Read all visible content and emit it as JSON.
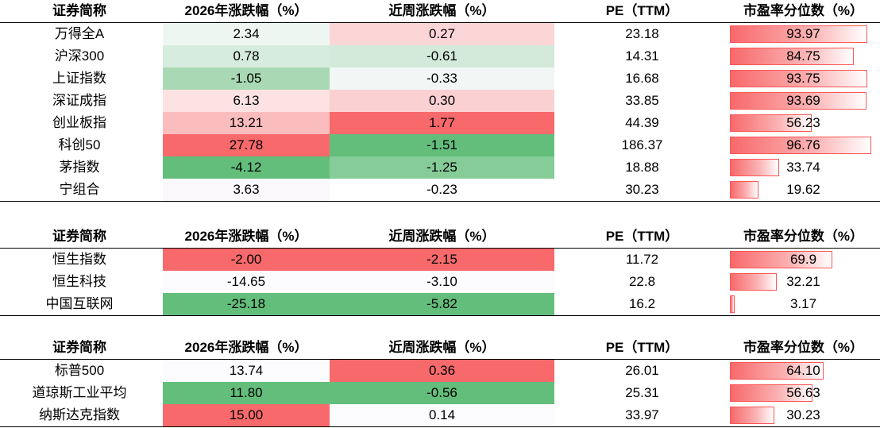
{
  "headers": [
    "证券简称",
    "2026年涨跌幅（%）",
    "近周涨跌幅（%）",
    "PE（TTM）",
    "市盈率分位数（%）"
  ],
  "sections": [
    {
      "rows": [
        {
          "name": "万得全A",
          "ytd": "2.34",
          "wk": "0.27",
          "pe": "23.18",
          "pct": "93.97",
          "pct_value": 93.97,
          "ytd_color": "#eef6f1",
          "wk_color": "#fcd5d7"
        },
        {
          "name": "沪深300",
          "ytd": "0.78",
          "wk": "-0.61",
          "pe": "14.31",
          "pct": "84.75",
          "pct_value": 84.75,
          "ytd_color": "#d6ecde",
          "wk_color": "#d3eadb"
        },
        {
          "name": "上证指数",
          "ytd": "-1.05",
          "wk": "-0.33",
          "pe": "16.68",
          "pct": "93.75",
          "pct_value": 93.75,
          "ytd_color": "#a9d9b4",
          "wk_color": "#f2f7f5"
        },
        {
          "name": "深证成指",
          "ytd": "6.13",
          "wk": "0.30",
          "pe": "33.85",
          "pct": "93.69",
          "pct_value": 93.69,
          "ytd_color": "#fde2e3",
          "wk_color": "#fbd0d2"
        },
        {
          "name": "创业板指",
          "ytd": "13.21",
          "wk": "1.77",
          "pe": "44.39",
          "pct": "56.23",
          "pct_value": 56.23,
          "ytd_color": "#fbbcbe",
          "wk_color": "#f8696b"
        },
        {
          "name": "科创50",
          "ytd": "27.78",
          "wk": "-1.51",
          "pe": "186.37",
          "pct": "96.76",
          "pct_value": 96.76,
          "ytd_color": "#f8696b",
          "wk_color": "#63be7b"
        },
        {
          "name": "茅指数",
          "ytd": "-4.12",
          "wk": "-1.25",
          "pe": "18.88",
          "pct": "33.74",
          "pct_value": 33.74,
          "ytd_color": "#63be7b",
          "wk_color": "#85cc98"
        },
        {
          "name": "宁组合",
          "ytd": "3.63",
          "wk": "-0.23",
          "pe": "30.23",
          "pct": "19.62",
          "pct_value": 19.62,
          "ytd_color": "#fbf8fc",
          "wk_color": "#ffffff"
        }
      ]
    },
    {
      "rows": [
        {
          "name": "恒生指数",
          "ytd": "-2.00",
          "wk": "-2.15",
          "pe": "11.72",
          "pct": "69.9",
          "pct_value": 69.9,
          "ytd_color": "#f8696b",
          "wk_color": "#f8696b"
        },
        {
          "name": "恒生科技",
          "ytd": "-14.65",
          "wk": "-3.10",
          "pe": "22.8",
          "pct": "32.21",
          "pct_value": 32.21,
          "ytd_color": "#fcfbfe",
          "wk_color": "#fcfbfe"
        },
        {
          "name": "中国互联网",
          "ytd": "-25.18",
          "wk": "-5.82",
          "pe": "16.2",
          "pct": "3.17",
          "pct_value": 3.17,
          "ytd_color": "#63be7b",
          "wk_color": "#63be7b"
        }
      ]
    },
    {
      "rows": [
        {
          "name": "标普500",
          "ytd": "13.74",
          "wk": "0.36",
          "pe": "26.01",
          "pct": "64.10",
          "pct_value": 64.1,
          "ytd_color": "#fcfbfe",
          "wk_color": "#f8696b"
        },
        {
          "name": "道琼斯工业平均",
          "ytd": "11.80",
          "wk": "-0.56",
          "pe": "25.31",
          "pct": "56.63",
          "pct_value": 56.63,
          "ytd_color": "#63be7b",
          "wk_color": "#63be7b"
        },
        {
          "name": "纳斯达克指数",
          "ytd": "15.00",
          "wk": "0.14",
          "pe": "33.97",
          "pct": "30.23",
          "pct_value": 30.23,
          "ytd_color": "#f8696b",
          "wk_color": "#fcfbfe"
        }
      ]
    }
  ],
  "bar_max_value": 100
}
